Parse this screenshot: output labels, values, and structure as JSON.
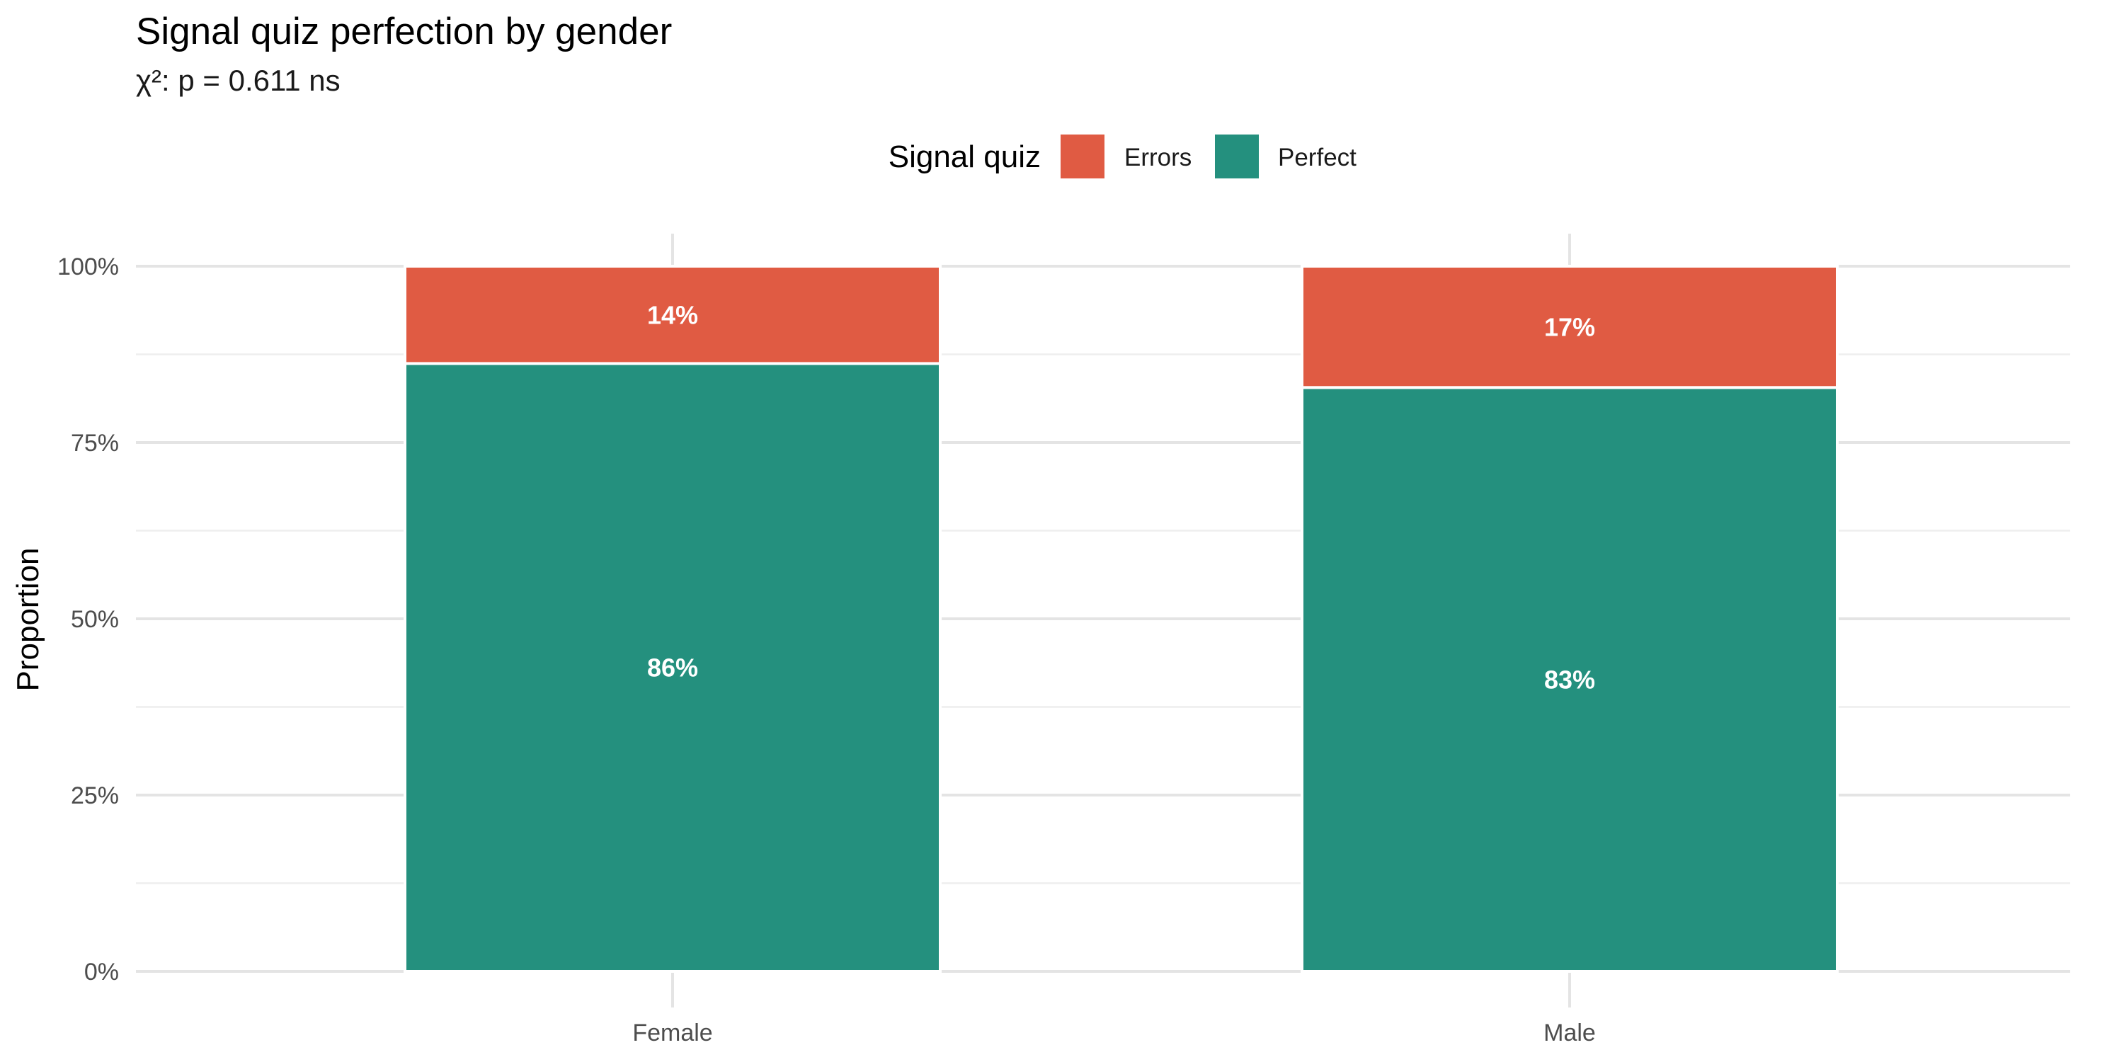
{
  "chart_data": {
    "type": "bar",
    "stacked": true,
    "title": "Signal quiz perfection by gender",
    "subtitle": "χ²: p = 0.611  ns",
    "xlabel": "",
    "ylabel": "Proportion",
    "ylim": [
      0,
      1
    ],
    "y_ticks": [
      0,
      0.25,
      0.5,
      0.75,
      1
    ],
    "y_tick_labels": [
      "0%",
      "25%",
      "50%",
      "75%",
      "100%"
    ],
    "grid": true,
    "categories": [
      "Female",
      "Male"
    ],
    "legend": {
      "title": "Signal quiz",
      "position": "top",
      "entries": [
        "Errors",
        "Perfect"
      ]
    },
    "series": [
      {
        "name": "Perfect",
        "color": "#24907E",
        "values": [
          0.862,
          0.828
        ],
        "labels": [
          "86%",
          "83%"
        ]
      },
      {
        "name": "Errors",
        "color": "#E05B43",
        "values": [
          0.138,
          0.172
        ],
        "labels": [
          "14%",
          "17%"
        ]
      }
    ]
  }
}
